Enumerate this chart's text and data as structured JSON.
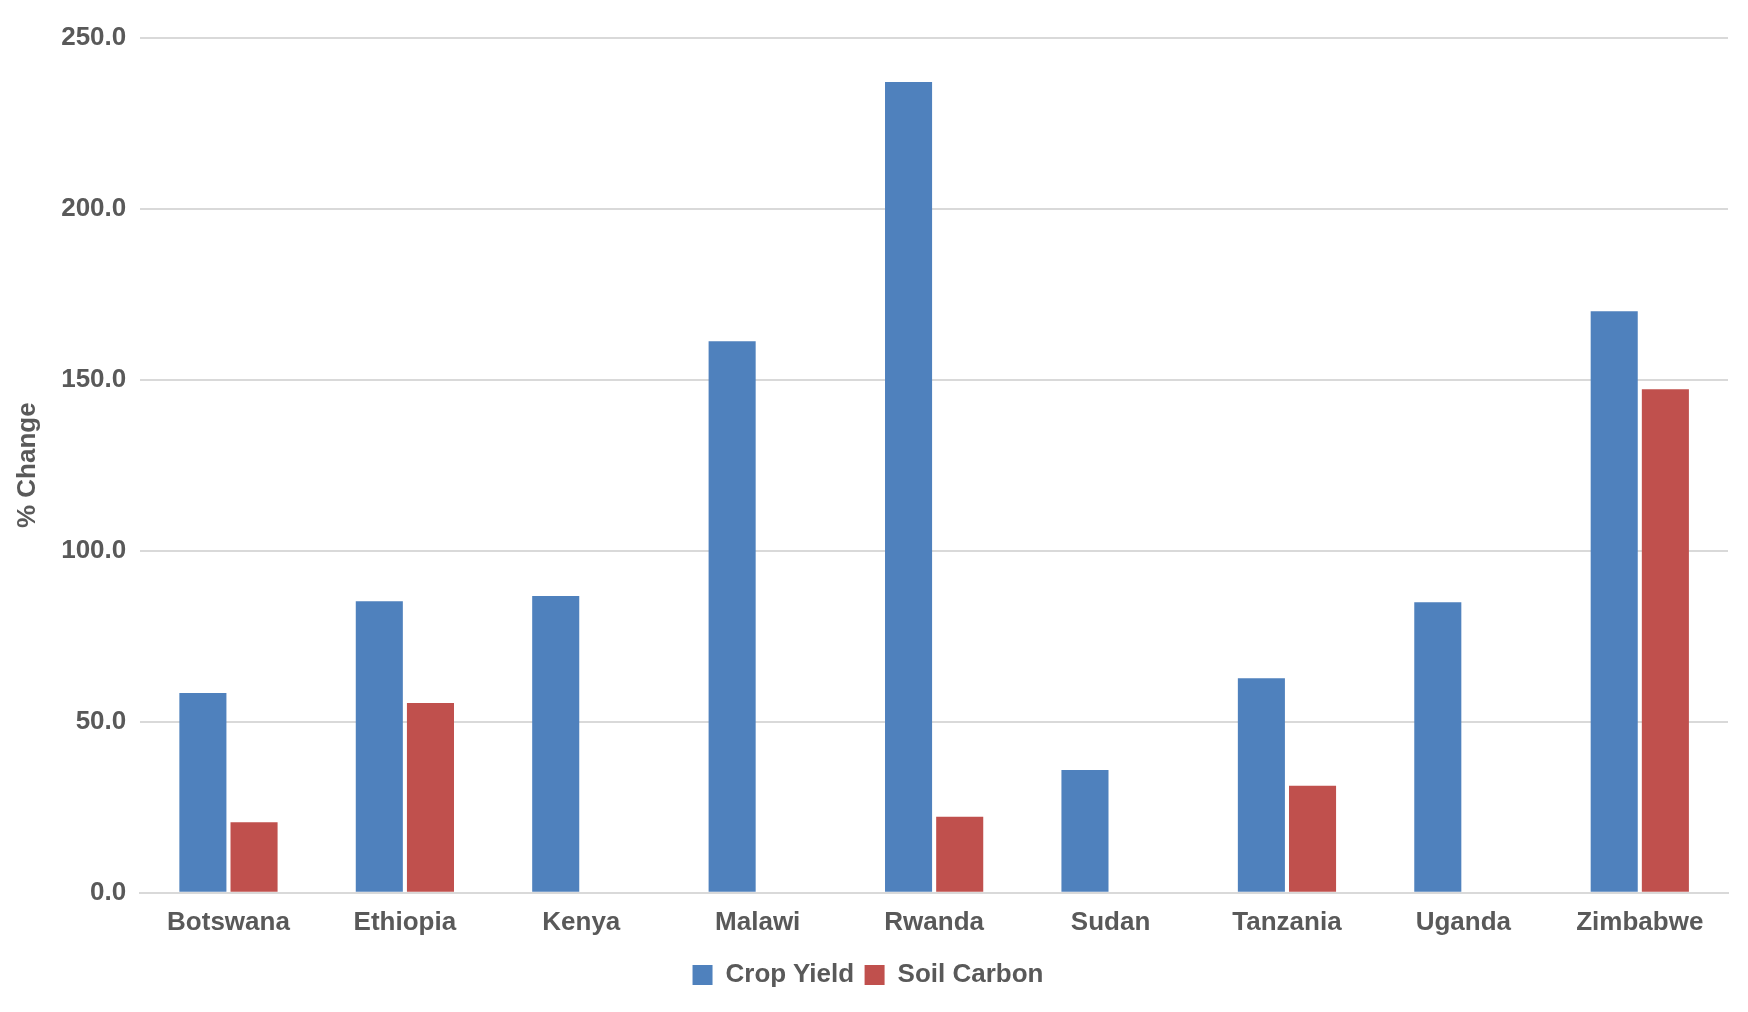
{
  "chart_data": {
    "type": "bar",
    "ylabel": "% Change",
    "categories": [
      "Botswana",
      "Ethiopia",
      "Kenya",
      "Malawi",
      "Rwanda",
      "Sudan",
      "Tanzania",
      "Uganda",
      "Zimbabwe"
    ],
    "series": [
      {
        "name": "Crop Yield",
        "color": "#4f81bd",
        "values": [
          58.4,
          85.2,
          86.8,
          161.2,
          237.0,
          35.9,
          62.7,
          84.9,
          170.0
        ]
      },
      {
        "name": "Soil Carbon",
        "color": "#c0504d",
        "values": [
          20.6,
          55.5,
          null,
          null,
          22.2,
          null,
          31.3,
          null,
          147.2
        ]
      }
    ],
    "ylim": [
      0,
      250
    ],
    "yticks": [
      {
        "value": 0,
        "label": "0.0"
      },
      {
        "value": 50,
        "label": "50.0"
      },
      {
        "value": 100,
        "label": "100.0"
      },
      {
        "value": 150,
        "label": "150.0"
      },
      {
        "value": 200,
        "label": "200.0"
      },
      {
        "value": 250,
        "label": "250.0"
      }
    ],
    "grid": "y",
    "legend": "bottom"
  }
}
